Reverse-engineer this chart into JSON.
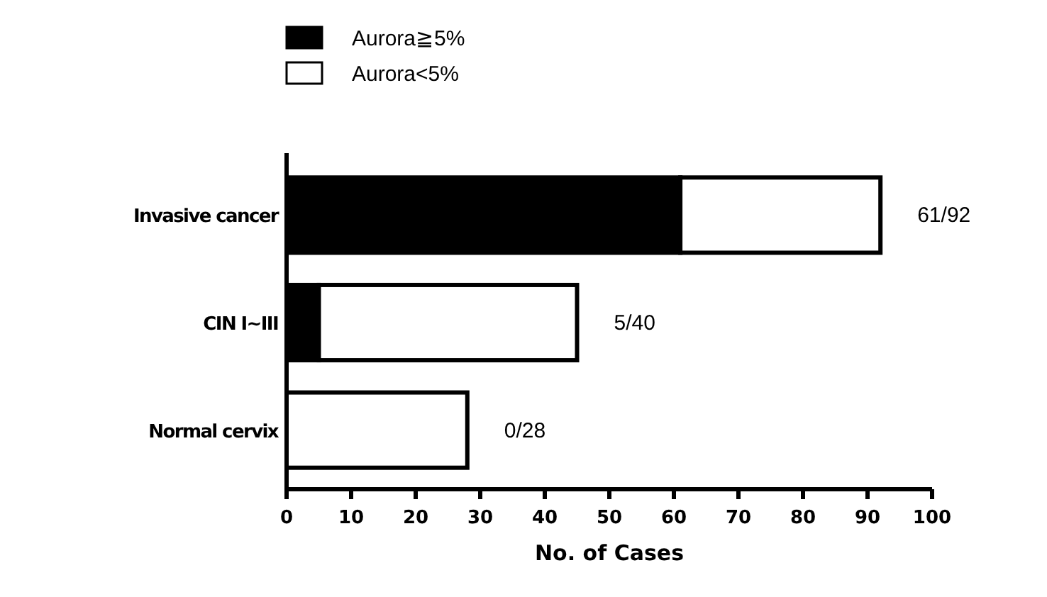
{
  "chart_data": {
    "type": "bar",
    "orientation": "horizontal",
    "stacked": true,
    "categories": [
      "Invasive cancer",
      "CIN I~III",
      "Normal cervix"
    ],
    "series": [
      {
        "name": "Aurora≧5%",
        "color": "#000000",
        "values": [
          61,
          5,
          0
        ]
      },
      {
        "name": "Aurora<5%",
        "color": "#ffffff",
        "values": [
          31,
          40,
          28
        ]
      }
    ],
    "totals": [
      "61/92",
      "5/40",
      "0/28"
    ],
    "xlabel": "No. of Cases",
    "xlim": [
      0,
      100
    ],
    "xticks": [
      0,
      10,
      20,
      30,
      40,
      50,
      60,
      70,
      80,
      90,
      100
    ],
    "legend": "top left",
    "grid": false
  }
}
